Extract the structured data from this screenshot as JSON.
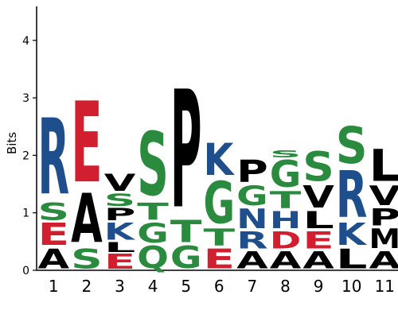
{
  "chart_data": {
    "type": "sequence-logo",
    "ylabel": "Bits",
    "ylim": [
      0,
      4.5
    ],
    "yticks": [
      "0",
      "1",
      "2",
      "3",
      "4"
    ],
    "colors": {
      "A": "#000000",
      "L": "#000000",
      "M": "#000000",
      "P": "#000000",
      "V": "#000000",
      "S": "#2a8a3e",
      "G": "#2a8a3e",
      "T": "#2a8a3e",
      "Q": "#2a8a3e",
      "K": "#1f4e8c",
      "R": "#1f4e8c",
      "H": "#1f4e8c",
      "N": "#1f4e8c",
      "E": "#d11f2f",
      "D": "#d11f2f",
      "N2": "#2a8a3e"
    },
    "positions": [
      {
        "label": "1",
        "stack": [
          [
            "A",
            0.4
          ],
          [
            "E",
            0.45
          ],
          [
            "S",
            0.35
          ],
          [
            "R",
            1.55
          ]
        ]
      },
      {
        "label": "2",
        "stack": [
          [
            "S",
            0.4
          ],
          [
            "A",
            1.0
          ],
          [
            "E",
            1.65
          ]
        ]
      },
      {
        "label": "3",
        "stack": [
          [
            "E",
            0.3
          ],
          [
            "L",
            0.2
          ],
          [
            "K",
            0.35
          ],
          [
            "P",
            0.25
          ],
          [
            "S",
            0.25
          ],
          [
            "V",
            0.35
          ]
        ]
      },
      {
        "label": "4",
        "stack": [
          [
            "Q",
            0.45
          ],
          [
            "G",
            0.4
          ],
          [
            "T",
            0.35
          ],
          [
            "S",
            1.3
          ]
        ]
      },
      {
        "label": "5",
        "stack": [
          [
            "G",
            0.45
          ],
          [
            "T",
            0.45
          ],
          [
            "P",
            2.4
          ]
        ]
      },
      {
        "label": "6",
        "stack": [
          [
            "E",
            0.4
          ],
          [
            "T",
            0.35
          ],
          [
            "G",
            0.85
          ],
          [
            "K",
            0.65
          ]
        ]
      },
      {
        "label": "7",
        "stack": [
          [
            "A",
            0.35
          ],
          [
            "R",
            0.35
          ],
          [
            "N",
            0.4
          ],
          [
            "G",
            0.4
          ],
          [
            "P",
            0.45
          ]
        ]
      },
      {
        "label": "8",
        "stack": [
          [
            "A",
            0.35
          ],
          [
            "D",
            0.35
          ],
          [
            "H",
            0.35
          ],
          [
            "T",
            0.35
          ],
          [
            "G",
            0.55
          ],
          [
            "S",
            0.15
          ]
        ]
      },
      {
        "label": "9",
        "stack": [
          [
            "A",
            0.35
          ],
          [
            "E",
            0.35
          ],
          [
            "L",
            0.35
          ],
          [
            "V",
            0.45
          ],
          [
            "S",
            0.6
          ]
        ]
      },
      {
        "label": "10",
        "stack": [
          [
            "L",
            0.4
          ],
          [
            "K",
            0.45
          ],
          [
            "R",
            0.95
          ],
          [
            "S",
            0.75
          ]
        ]
      },
      {
        "label": "11",
        "stack": [
          [
            "A",
            0.35
          ],
          [
            "M",
            0.4
          ],
          [
            "P",
            0.35
          ],
          [
            "V",
            0.4
          ],
          [
            "L",
            0.65
          ]
        ]
      }
    ]
  }
}
